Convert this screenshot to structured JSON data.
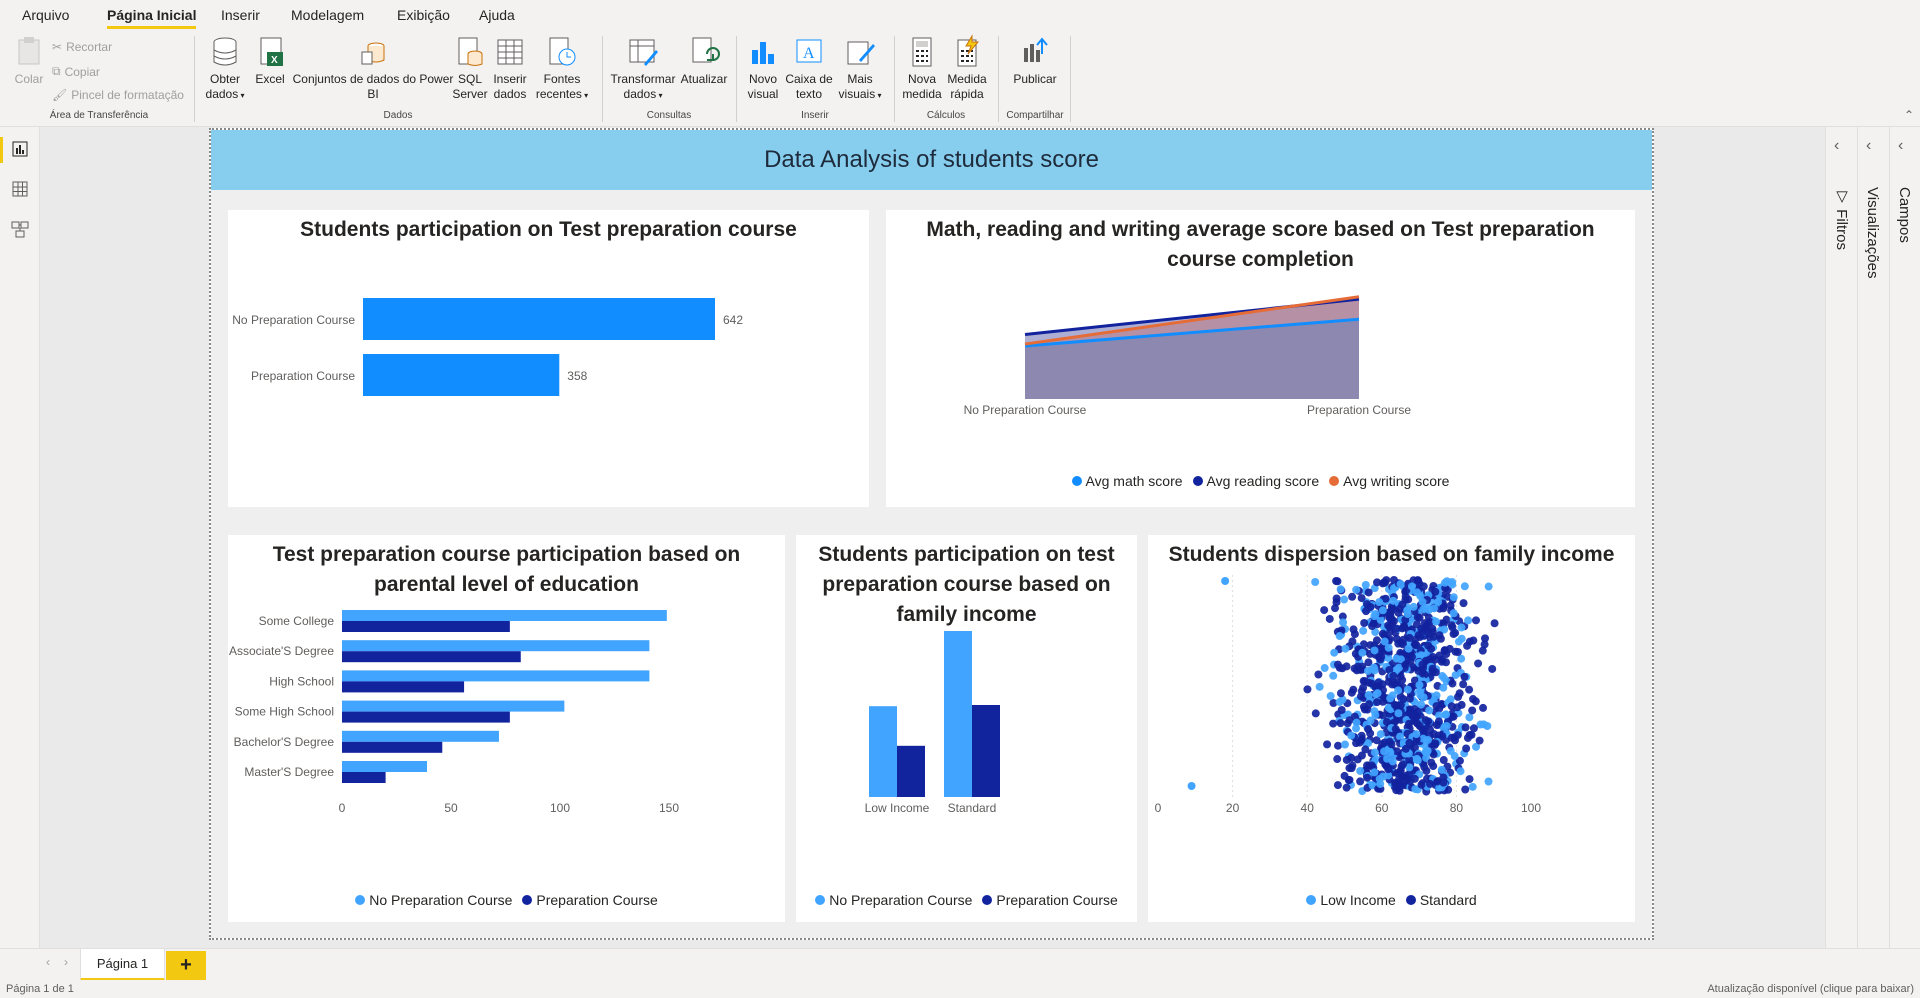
{
  "ribbon": {
    "tabs": [
      "Arquivo",
      "Página Inicial",
      "Inserir",
      "Modelagem",
      "Exibição",
      "Ajuda"
    ],
    "active_tab": "Página Inicial",
    "clipboard": {
      "paste": "Colar",
      "cut": "Recortar",
      "copy": "Copiar",
      "format_painter": "Pincel de formatação",
      "group": "Área de Transferência"
    },
    "data": {
      "get_data_1": "Obter",
      "get_data_2": "dados",
      "excel": "Excel",
      "datasets_1": "Conjuntos de dados do Power",
      "datasets_2": "BI",
      "sql_1": "SQL",
      "sql_2": "Server",
      "enter_1": "Inserir",
      "enter_2": "dados",
      "recent_1": "Fontes",
      "recent_2": "recentes",
      "group": "Dados"
    },
    "queries": {
      "transform_1": "Transformar",
      "transform_2": "dados",
      "refresh": "Atualizar",
      "group": "Consultas"
    },
    "insert": {
      "newvisual_1": "Novo",
      "newvisual_2": "visual",
      "textbox_1": "Caixa de",
      "textbox_2": "texto",
      "more_1": "Mais",
      "more_2": "visuais",
      "group": "Inserir"
    },
    "calc": {
      "newmeasure_1": "Nova",
      "newmeasure_2": "medida",
      "quick_1": "Medida",
      "quick_2": "rápida",
      "group": "Cálculos"
    },
    "share": {
      "publish": "Publicar",
      "group": "Compartilhar"
    }
  },
  "report": {
    "banner_title": "Data Analysis of students score",
    "colors": {
      "light_blue": "#118dff",
      "bar_light": "#41a4ff",
      "navy": "#12239e",
      "orange": "#e66c37",
      "banner": "#87cded"
    }
  },
  "visuals": {
    "participation": {
      "title": "Students participation on Test preparation course",
      "chart_data": {
        "type": "bar",
        "categories": [
          "No Preparation Course",
          "Preparation Course"
        ],
        "values": [
          642,
          358
        ],
        "data_labels": [
          "642",
          "358"
        ],
        "xlim": [
          0,
          700
        ]
      }
    },
    "avg_scores": {
      "title_1": "Math, reading and writing average score based on Test preparation",
      "title_2": "course completion",
      "chart_data": {
        "type": "area",
        "categories": [
          "No Preparation Course",
          "Preparation Course"
        ],
        "series": [
          {
            "name": "Avg math score",
            "values": [
              64.1,
              69.7
            ]
          },
          {
            "name": "Avg reading score",
            "values": [
              66.5,
              73.9
            ]
          },
          {
            "name": "Avg writing score",
            "values": [
              64.5,
              74.4
            ]
          }
        ],
        "ylim": [
          53,
          80
        ]
      }
    },
    "parental": {
      "title_1": "Test preparation course participation based on",
      "title_2": "parental level of education",
      "chart_data": {
        "type": "bar",
        "categories": [
          "Some College",
          "Associate'S Degree",
          "High School",
          "Some High School",
          "Bachelor'S Degree",
          "Master'S Degree"
        ],
        "series": [
          {
            "name": "No Preparation Course",
            "values": [
              149,
              141,
              141,
              102,
              72,
              39
            ]
          },
          {
            "name": "Preparation Course",
            "values": [
              77,
              82,
              56,
              77,
              46,
              20
            ]
          }
        ],
        "x_ticks": [
          "0",
          "50",
          "100",
          "150"
        ],
        "xlim": [
          0,
          150
        ]
      }
    },
    "income": {
      "title_1": "Students participation on test",
      "title_2": "preparation course based on",
      "title_3": "family income",
      "chart_data": {
        "type": "bar",
        "categories": [
          "Low Income",
          "Standard"
        ],
        "series": [
          {
            "name": "No Preparation Course",
            "values": [
              227,
              415
            ]
          },
          {
            "name": "Preparation Course",
            "values": [
              128,
              230
            ]
          }
        ],
        "ylim": [
          0,
          450
        ]
      }
    },
    "dispersion": {
      "title": "Students dispersion based on family income",
      "chart_data": {
        "type": "scatter",
        "series": [
          {
            "name": "Low Income"
          },
          {
            "name": "Standard"
          }
        ],
        "x_ticks": [
          "0",
          "20",
          "40",
          "60",
          "80",
          "100"
        ],
        "xlim": [
          0,
          100
        ]
      }
    }
  },
  "panes": {
    "filters": "Filtros",
    "visualizations": "Visualizações",
    "fields": "Campos"
  },
  "pages": {
    "current": "Página 1",
    "add": "+"
  },
  "status": {
    "page_of": "Página 1 de 1",
    "update": "Atualização disponível (clique para baixar)"
  }
}
